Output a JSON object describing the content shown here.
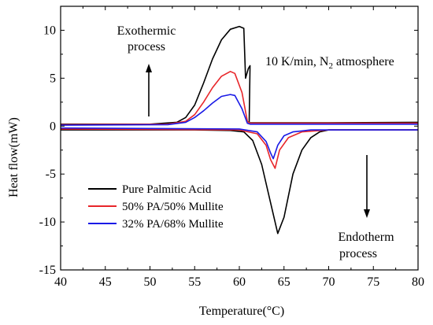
{
  "chart_data": {
    "type": "line",
    "xlabel": "Temperature(°C)",
    "ylabel": "Heat flow(mW)",
    "xlim": [
      40,
      80
    ],
    "ylim": [
      -15,
      12.5
    ],
    "xticks": [
      40,
      45,
      50,
      55,
      60,
      65,
      70,
      75,
      80
    ],
    "yticks": [
      10,
      5,
      0,
      -5,
      -10,
      -15
    ],
    "grid": false,
    "legend_position": "lower-left",
    "annotations": {
      "exo_line1": "Exothermic",
      "exo_line2": "process",
      "rate_prefix": "10 K/min, N",
      "rate_sub": "2",
      "rate_suffix": " atmosphere",
      "endo_line1": "Endotherm",
      "endo_line2": "process"
    },
    "series": [
      {
        "name": "Pure Palmitic Acid",
        "color": "#000000",
        "cooling": [
          [
            40,
            0.2
          ],
          [
            50,
            0.2
          ],
          [
            53,
            0.4
          ],
          [
            54,
            0.9
          ],
          [
            55,
            2.2
          ],
          [
            56,
            4.5
          ],
          [
            57,
            7.0
          ],
          [
            58,
            9.0
          ],
          [
            59,
            10.1
          ],
          [
            60,
            10.4
          ],
          [
            60.5,
            10.2
          ],
          [
            60.7,
            5.0
          ],
          [
            61.0,
            6.0
          ],
          [
            61.2,
            6.3
          ],
          [
            61.1,
            0.35
          ],
          [
            70,
            0.35
          ],
          [
            80,
            0.4
          ]
        ],
        "heating": [
          [
            40,
            -0.4
          ],
          [
            55,
            -0.4
          ],
          [
            59,
            -0.45
          ],
          [
            60.5,
            -0.6
          ],
          [
            61.5,
            -1.5
          ],
          [
            62.5,
            -4.0
          ],
          [
            63.5,
            -8.0
          ],
          [
            64.3,
            -11.2
          ],
          [
            65,
            -9.5
          ],
          [
            66,
            -5.0
          ],
          [
            67,
            -2.5
          ],
          [
            68,
            -1.2
          ],
          [
            69,
            -0.6
          ],
          [
            70,
            -0.4
          ],
          [
            80,
            -0.4
          ]
        ]
      },
      {
        "name": "50% PA/50% Mullite",
        "color": "#e8262a",
        "cooling": [
          [
            40,
            0.15
          ],
          [
            52,
            0.2
          ],
          [
            54,
            0.5
          ],
          [
            55,
            1.2
          ],
          [
            56,
            2.5
          ],
          [
            57,
            4.0
          ],
          [
            58,
            5.2
          ],
          [
            59,
            5.7
          ],
          [
            59.5,
            5.5
          ],
          [
            60.3,
            3.5
          ],
          [
            60.9,
            0.5
          ],
          [
            61.2,
            0.3
          ],
          [
            70,
            0.3
          ],
          [
            80,
            0.3
          ]
        ],
        "heating": [
          [
            40,
            -0.3
          ],
          [
            60,
            -0.4
          ],
          [
            62,
            -0.8
          ],
          [
            63,
            -2.0
          ],
          [
            63.5,
            -3.5
          ],
          [
            64.0,
            -4.4
          ],
          [
            64.5,
            -2.5
          ],
          [
            65.5,
            -1.2
          ],
          [
            67,
            -0.6
          ],
          [
            70,
            -0.4
          ],
          [
            80,
            -0.4
          ]
        ]
      },
      {
        "name": "32% PA/68% Mullite",
        "color": "#1a1ae6",
        "cooling": [
          [
            40,
            0.1
          ],
          [
            52,
            0.15
          ],
          [
            54,
            0.4
          ],
          [
            55,
            0.9
          ],
          [
            56,
            1.6
          ],
          [
            57,
            2.4
          ],
          [
            58,
            3.1
          ],
          [
            59,
            3.3
          ],
          [
            59.5,
            3.2
          ],
          [
            60.3,
            1.8
          ],
          [
            60.9,
            0.3
          ],
          [
            61.2,
            0.2
          ],
          [
            70,
            0.2
          ],
          [
            80,
            0.2
          ]
        ],
        "heating": [
          [
            40,
            -0.2
          ],
          [
            60,
            -0.3
          ],
          [
            62,
            -0.6
          ],
          [
            63,
            -1.6
          ],
          [
            63.5,
            -2.8
          ],
          [
            63.8,
            -3.4
          ],
          [
            64.3,
            -2.0
          ],
          [
            65,
            -1.0
          ],
          [
            66,
            -0.6
          ],
          [
            68,
            -0.4
          ],
          [
            80,
            -0.4
          ]
        ]
      }
    ]
  }
}
